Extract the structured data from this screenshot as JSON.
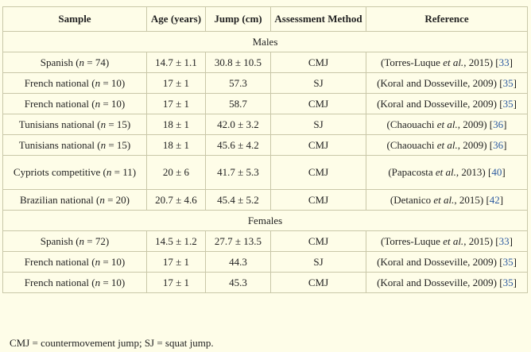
{
  "headers": [
    "Sample",
    "Age (years)",
    "Jump (cm)",
    "Assessment Method",
    "Reference"
  ],
  "sections": [
    {
      "label": "Males",
      "rows": [
        {
          "sample_pre": "Spanish (",
          "n_label": "n",
          "sample_post": " = 74)",
          "age": "14.7 ± 1.1",
          "jump": "30.8 ± 10.5",
          "method": "CMJ",
          "ref_pre": "(Torres-Luque ",
          "ref_etal": "et al.",
          "ref_post": ", 2015) [",
          "ref_num": "33",
          "ref_end": "]"
        },
        {
          "sample_pre": "French national (",
          "n_label": "n",
          "sample_post": " = 10)",
          "age": "17 ± 1",
          "jump": "57.3",
          "method": "SJ",
          "ref_pre": "(Koral and Dosseville, 2009) [",
          "ref_etal": "",
          "ref_post": "",
          "ref_num": "35",
          "ref_end": "]"
        },
        {
          "sample_pre": "French national (",
          "n_label": "n",
          "sample_post": " = 10)",
          "age": "17 ± 1",
          "jump": "58.7",
          "method": "CMJ",
          "ref_pre": "(Koral and Dosseville, 2009) [",
          "ref_etal": "",
          "ref_post": "",
          "ref_num": "35",
          "ref_end": "]"
        },
        {
          "sample_pre": "Tunisians national (",
          "n_label": "n",
          "sample_post": " = 15)",
          "age": "18 ± 1",
          "jump": "42.0 ± 3.2",
          "method": "SJ",
          "ref_pre": "(Chaouachi ",
          "ref_etal": "et al.",
          "ref_post": ", 2009) [",
          "ref_num": "36",
          "ref_end": "]"
        },
        {
          "sample_pre": "Tunisians national (",
          "n_label": "n",
          "sample_post": " = 15)",
          "age": "18 ± 1",
          "jump": "45.6 ± 4.2",
          "method": "CMJ",
          "ref_pre": "(Chaouachi ",
          "ref_etal": "et al.",
          "ref_post": ", 2009) [",
          "ref_num": "36",
          "ref_end": "]"
        },
        {
          "sample_pre": "Cypriots competitive (",
          "n_label": "n",
          "sample_post": " = 11)",
          "age": "20 ± 6",
          "jump": "41.7 ± 5.3",
          "method": "CMJ",
          "ref_pre": "(Papacosta ",
          "ref_etal": "et al.",
          "ref_post": ", 2013) [",
          "ref_num": "40",
          "ref_end": "]",
          "tall": true
        },
        {
          "sample_pre": "Brazilian national (",
          "n_label": "n",
          "sample_post": " = 20)",
          "age": "20.7 ± 4.6",
          "jump": "45.4 ± 5.2",
          "method": "CMJ",
          "ref_pre": "(Detanico ",
          "ref_etal": "et al.",
          "ref_post": ", 2015) [",
          "ref_num": "42",
          "ref_end": "]"
        }
      ]
    },
    {
      "label": "Females",
      "rows": [
        {
          "sample_pre": "Spanish (",
          "n_label": "n",
          "sample_post": " = 72)",
          "age": "14.5 ± 1.2",
          "jump": "27.7 ± 13.5",
          "method": "CMJ",
          "ref_pre": "(Torres-Luque ",
          "ref_etal": "et al.",
          "ref_post": ", 2015) [",
          "ref_num": "33",
          "ref_end": "]"
        },
        {
          "sample_pre": "French national (",
          "n_label": "n",
          "sample_post": " = 10)",
          "age": "17 ± 1",
          "jump": "44.3",
          "method": "SJ",
          "ref_pre": "(Koral and Dosseville, 2009) [",
          "ref_etal": "",
          "ref_post": "",
          "ref_num": "35",
          "ref_end": "]"
        },
        {
          "sample_pre": "French national (",
          "n_label": "n",
          "sample_post": " = 10)",
          "age": "17 ± 1",
          "jump": "45.3",
          "method": "CMJ",
          "ref_pre": "(Koral and Dosseville, 2009) [",
          "ref_etal": "",
          "ref_post": "",
          "ref_num": "35",
          "ref_end": "]"
        }
      ]
    }
  ],
  "footnote": "CMJ = countermovement jump; SJ = squat jump.",
  "colors": {
    "background": "#fefde8",
    "link": "#2c5aa0",
    "border": "#c9c7a8"
  }
}
